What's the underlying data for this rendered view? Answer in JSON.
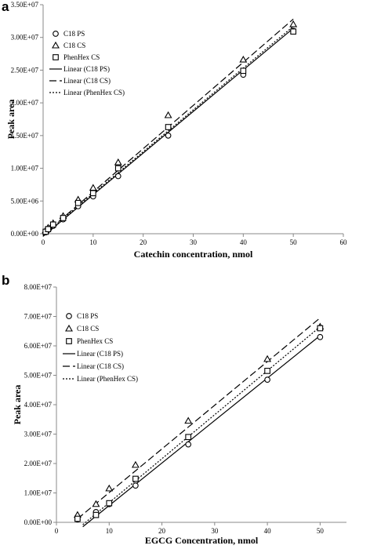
{
  "chart_data": [
    {
      "panel_label": "a",
      "type": "scatter",
      "xlabel": "Catechin concentration, nmol",
      "ylabel": "Peak area",
      "xlim": [
        0,
        60
      ],
      "ylim": [
        0,
        35000000
      ],
      "x_ticks": [
        "0",
        "10",
        "20",
        "30",
        "40",
        "50",
        "60"
      ],
      "y_ticks": [
        "0.00E+00",
        "5.00E+06",
        "1.00E+07",
        "1.50E+07",
        "2.00E+07",
        "2.50E+07",
        "3.00E+07",
        "3.50E+07"
      ],
      "grid": false,
      "legend_position": "top-left",
      "series": [
        {
          "name": "C18 PS",
          "marker": "circle",
          "x": [
            0.5,
            1,
            2,
            4,
            7,
            10,
            15,
            25,
            40,
            50
          ],
          "y": [
            200000,
            600000,
            1200000,
            2200000,
            4200000,
            5700000,
            8800000,
            15000000,
            24300000,
            31000000
          ]
        },
        {
          "name": "C18 CS",
          "marker": "triangle",
          "x": [
            0.5,
            1,
            2,
            4,
            7,
            10,
            15,
            25,
            40,
            50
          ],
          "y": [
            500000,
            900000,
            1600000,
            2700000,
            5200000,
            7000000,
            10900000,
            18100000,
            26600000,
            32000000
          ]
        },
        {
          "name": "PhenHex CS",
          "marker": "square",
          "x": [
            0.5,
            1,
            2,
            4,
            7,
            10,
            15,
            25,
            40,
            50
          ],
          "y": [
            300000,
            700000,
            1400000,
            2400000,
            4700000,
            6200000,
            10000000,
            16300000,
            24900000,
            30900000
          ]
        }
      ],
      "trendlines": [
        {
          "name": "Linear (C18 PS)",
          "style": "solid",
          "x": [
            0,
            50
          ],
          "y": [
            -400000,
            31400000
          ]
        },
        {
          "name": "Linear (C18 CS)",
          "style": "dashed",
          "x": [
            0,
            50
          ],
          "y": [
            -200000,
            32800000
          ]
        },
        {
          "name": "Linear (PhenHex CS)",
          "style": "dotted",
          "x": [
            0,
            50
          ],
          "y": [
            -250000,
            31700000
          ]
        }
      ]
    },
    {
      "panel_label": "b",
      "type": "scatter",
      "xlabel": "EGCG Concentration, nmol",
      "ylabel": "Peak area",
      "xlim": [
        0,
        55
      ],
      "ylim": [
        0,
        80000000
      ],
      "x_ticks": [
        "0",
        "10",
        "20",
        "30",
        "40",
        "50"
      ],
      "y_ticks": [
        "0.00E+00",
        "1.00E+07",
        "2.00E+07",
        "3.00E+07",
        "4.00E+07",
        "5.00E+07",
        "6.00E+07",
        "7.00E+07",
        "8.00E+07"
      ],
      "grid": false,
      "legend_position": "top-left",
      "series": [
        {
          "name": "C18 PS",
          "marker": "circle",
          "x": [
            4,
            7.5,
            10,
            15,
            25,
            40,
            50
          ],
          "y": [
            1000000,
            3500000,
            6200000,
            12500000,
            26500000,
            48500000,
            63000000
          ]
        },
        {
          "name": "C18 CS",
          "marker": "triangle",
          "x": [
            4,
            7.5,
            10,
            15,
            25,
            40,
            50
          ],
          "y": [
            2500000,
            6200000,
            11500000,
            19500000,
            34500000,
            55500000,
            66500000
          ]
        },
        {
          "name": "PhenHex CS",
          "marker": "square",
          "x": [
            4,
            7.5,
            10,
            15,
            25,
            40,
            50
          ],
          "y": [
            1200000,
            2500000,
            6500000,
            14800000,
            29000000,
            51500000,
            66000000
          ]
        }
      ],
      "trendlines": [
        {
          "name": "Linear (C18 PS)",
          "style": "solid",
          "x": [
            5,
            50
          ],
          "y": [
            -1500000,
            63500000
          ]
        },
        {
          "name": "Linear (C18 CS)",
          "style": "dashed",
          "x": [
            4,
            50
          ],
          "y": [
            1200000,
            69500000
          ]
        },
        {
          "name": "Linear (PhenHex CS)",
          "style": "dotted",
          "x": [
            5,
            50
          ],
          "y": [
            -800000,
            66500000
          ]
        }
      ]
    }
  ]
}
